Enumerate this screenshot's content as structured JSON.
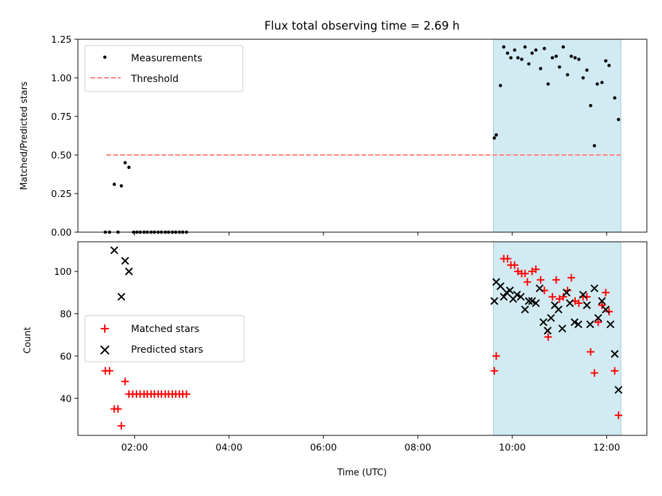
{
  "chart_data": [
    {
      "type": "scatter",
      "title": "Flux total observing time = 2.69 h",
      "xlabel": "",
      "ylabel": "Matched/Predicted stars",
      "xlim": [
        0.8,
        12.85
      ],
      "ylim": [
        0,
        1.25
      ],
      "yticks": [
        0.0,
        0.25,
        0.5,
        0.75,
        1.0,
        1.25
      ],
      "ytick_labels": [
        "0.00",
        "0.25",
        "0.50",
        "0.75",
        "1.00",
        "1.25"
      ],
      "xticks": [
        2,
        4,
        6,
        8,
        10,
        12
      ],
      "shaded_span": [
        9.6,
        12.3
      ],
      "shade_color": "#add8e6",
      "legend_position": "upper left",
      "legend": [
        "Measurements",
        "Threshold"
      ],
      "threshold": {
        "name": "Threshold",
        "y": 0.5,
        "x_range": [
          1.4,
          12.3
        ],
        "color": "#ff8080"
      },
      "series": [
        {
          "name": "Measurements",
          "marker": "dot",
          "color": "#000000",
          "points": [
            [
              1.38,
              0.0
            ],
            [
              1.47,
              0.0
            ],
            [
              1.57,
              0.31
            ],
            [
              1.65,
              0.0
            ],
            [
              1.72,
              0.3
            ],
            [
              1.8,
              0.45
            ],
            [
              1.88,
              0.42
            ],
            [
              1.98,
              0.0
            ],
            [
              2.05,
              0.0
            ],
            [
              2.12,
              0.0
            ],
            [
              2.2,
              0.0
            ],
            [
              2.27,
              0.0
            ],
            [
              2.35,
              0.0
            ],
            [
              2.42,
              0.0
            ],
            [
              2.5,
              0.0
            ],
            [
              2.57,
              0.0
            ],
            [
              2.65,
              0.0
            ],
            [
              2.72,
              0.0
            ],
            [
              2.8,
              0.0
            ],
            [
              2.87,
              0.0
            ],
            [
              2.95,
              0.0
            ],
            [
              3.02,
              0.0
            ],
            [
              3.1,
              0.0
            ],
            [
              9.62,
              0.61
            ],
            [
              9.66,
              0.63
            ],
            [
              9.75,
              0.95
            ],
            [
              9.82,
              1.2
            ],
            [
              9.9,
              1.16
            ],
            [
              9.97,
              1.13
            ],
            [
              10.05,
              1.18
            ],
            [
              10.12,
              1.13
            ],
            [
              10.2,
              1.12
            ],
            [
              10.27,
              1.2
            ],
            [
              10.35,
              1.09
            ],
            [
              10.42,
              1.16
            ],
            [
              10.5,
              1.18
            ],
            [
              10.6,
              1.06
            ],
            [
              10.68,
              1.19
            ],
            [
              10.76,
              0.96
            ],
            [
              10.85,
              1.13
            ],
            [
              10.93,
              1.14
            ],
            [
              11.0,
              1.07
            ],
            [
              11.08,
              1.2
            ],
            [
              11.17,
              1.02
            ],
            [
              11.25,
              1.14
            ],
            [
              11.33,
              1.13
            ],
            [
              11.41,
              1.12
            ],
            [
              11.5,
              1.0
            ],
            [
              11.58,
              1.05
            ],
            [
              11.66,
              0.82
            ],
            [
              11.74,
              0.56
            ],
            [
              11.8,
              0.96
            ],
            [
              11.9,
              0.97
            ],
            [
              11.98,
              1.11
            ],
            [
              12.05,
              1.08
            ],
            [
              12.17,
              0.87
            ],
            [
              12.25,
              0.73
            ]
          ]
        }
      ]
    },
    {
      "type": "scatter",
      "title": "",
      "xlabel": "Time (UTC)",
      "ylabel": "Count",
      "xlim": [
        0.8,
        12.85
      ],
      "ylim": [
        22.5,
        114
      ],
      "yticks": [
        40,
        60,
        80,
        100
      ],
      "xticks": [
        2,
        4,
        6,
        8,
        10,
        12
      ],
      "xtick_labels": [
        "02:00",
        "04:00",
        "06:00",
        "08:00",
        "10:00",
        "12:00"
      ],
      "shaded_span": [
        9.6,
        12.3
      ],
      "shade_color": "#add8e6",
      "legend_position": "center left",
      "legend": [
        "Matched stars",
        "Predicted stars"
      ],
      "series": [
        {
          "name": "Matched stars",
          "marker": "plus",
          "color": "#ff0000",
          "points": [
            [
              1.38,
              53
            ],
            [
              1.47,
              53
            ],
            [
              1.57,
              35
            ],
            [
              1.65,
              35
            ],
            [
              1.72,
              27
            ],
            [
              1.8,
              48
            ],
            [
              1.88,
              42
            ],
            [
              1.96,
              42
            ],
            [
              2.04,
              42
            ],
            [
              2.12,
              42
            ],
            [
              2.2,
              42
            ],
            [
              2.27,
              42
            ],
            [
              2.35,
              42
            ],
            [
              2.42,
              42
            ],
            [
              2.5,
              42
            ],
            [
              2.57,
              42
            ],
            [
              2.65,
              42
            ],
            [
              2.72,
              42
            ],
            [
              2.8,
              42
            ],
            [
              2.87,
              42
            ],
            [
              2.95,
              42
            ],
            [
              3.02,
              42
            ],
            [
              3.1,
              42
            ],
            [
              9.62,
              53
            ],
            [
              9.66,
              60
            ],
            [
              9.82,
              106
            ],
            [
              9.9,
              106
            ],
            [
              9.97,
              103
            ],
            [
              10.05,
              103
            ],
            [
              10.12,
              100
            ],
            [
              10.2,
              99
            ],
            [
              10.27,
              99
            ],
            [
              10.32,
              95
            ],
            [
              10.42,
              100
            ],
            [
              10.5,
              101
            ],
            [
              10.6,
              96
            ],
            [
              10.68,
              91
            ],
            [
              10.76,
              69
            ],
            [
              10.85,
              88
            ],
            [
              10.93,
              96
            ],
            [
              11.0,
              87
            ],
            [
              11.08,
              88
            ],
            [
              11.17,
              91
            ],
            [
              11.25,
              97
            ],
            [
              11.33,
              86
            ],
            [
              11.41,
              85
            ],
            [
              11.5,
              88
            ],
            [
              11.58,
              88
            ],
            [
              11.66,
              62
            ],
            [
              11.74,
              52
            ],
            [
              11.82,
              76
            ],
            [
              11.9,
              84
            ],
            [
              11.98,
              90
            ],
            [
              12.05,
              81
            ],
            [
              12.17,
              53
            ],
            [
              12.25,
              32
            ]
          ]
        },
        {
          "name": "Predicted stars",
          "marker": "x",
          "color": "#000000",
          "points": [
            [
              1.57,
              110
            ],
            [
              1.72,
              88
            ],
            [
              1.8,
              105
            ],
            [
              1.88,
              100
            ],
            [
              9.62,
              86
            ],
            [
              9.66,
              95
            ],
            [
              9.75,
              93
            ],
            [
              9.82,
              88
            ],
            [
              9.88,
              90
            ],
            [
              9.95,
              91
            ],
            [
              10.02,
              87
            ],
            [
              10.1,
              89
            ],
            [
              10.18,
              88
            ],
            [
              10.27,
              82
            ],
            [
              10.35,
              86
            ],
            [
              10.42,
              86
            ],
            [
              10.5,
              85
            ],
            [
              10.58,
              92
            ],
            [
              10.66,
              76
            ],
            [
              10.75,
              72
            ],
            [
              10.82,
              78
            ],
            [
              10.9,
              84
            ],
            [
              10.98,
              82
            ],
            [
              11.06,
              73
            ],
            [
              11.15,
              90
            ],
            [
              11.22,
              85
            ],
            [
              11.32,
              76
            ],
            [
              11.4,
              75
            ],
            [
              11.5,
              89
            ],
            [
              11.58,
              84
            ],
            [
              11.65,
              75
            ],
            [
              11.74,
              92
            ],
            [
              11.82,
              78
            ],
            [
              11.9,
              86
            ],
            [
              11.98,
              82
            ],
            [
              12.08,
              75
            ],
            [
              12.17,
              61
            ],
            [
              12.25,
              44
            ]
          ]
        }
      ]
    }
  ]
}
